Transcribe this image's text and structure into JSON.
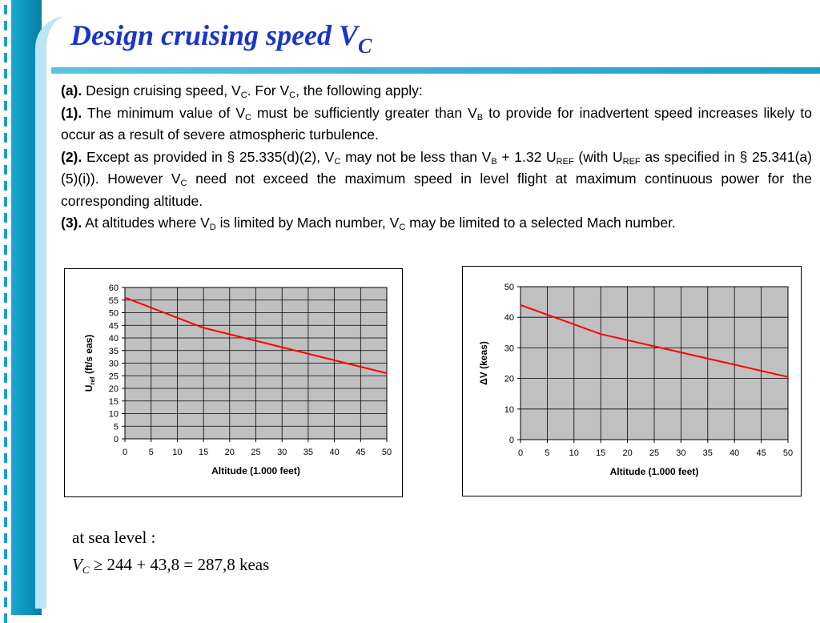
{
  "title": {
    "text": "Design cruising speed V",
    "sub": "C"
  },
  "body": {
    "p_a": {
      "label": "(a).",
      "t1": " Design cruising speed, V",
      "s1": "C",
      "t2": ". For V",
      "s2": "C",
      "t3": ", the following apply:"
    },
    "p_1": {
      "label": "(1).",
      "t1": " The minimum value of V",
      "s1": "C",
      "t2": " must be sufficiently greater than V",
      "s2": "B",
      "t3": " to provide for inadvertent speed increases likely to occur as a result of severe atmospheric turbulence."
    },
    "p_2": {
      "label": "(2).",
      "t1": " Except as provided in § 25.335(d)(2), V",
      "s1": "C",
      "t2": " may not be less than V",
      "s2": "B",
      "t3": " + 1.32 U",
      "s3": "REF",
      "t4": " (with U",
      "s4": "REF",
      "t5": " as specified in § 25.341(a)(5)(i)). However V",
      "s5": "C",
      "t6": " need not exceed the maximum speed in level flight at maximum continuous power for the corresponding altitude."
    },
    "p_3": {
      "label": "(3).",
      "t1": " At altitudes where V",
      "s1": "D",
      "t2": " is limited by Mach number, V",
      "s2": "C",
      "t3": " may be limited to a selected Mach number."
    }
  },
  "chart_data": [
    {
      "type": "line",
      "xlabel": "Altitude (1.000 feet)",
      "ylabel": "U",
      "ylabel_sub": "ref",
      "ylabel_rest": " (ft/s eas)",
      "x_ticks": [
        "0",
        "5",
        "10",
        "15",
        "20",
        "25",
        "30",
        "35",
        "40",
        "45",
        "50"
      ],
      "y_ticks": [
        "0",
        "5",
        "10",
        "15",
        "20",
        "25",
        "30",
        "35",
        "40",
        "45",
        "50",
        "55",
        "60"
      ],
      "xlim": [
        0,
        50
      ],
      "ylim": [
        0,
        60
      ],
      "grid": true,
      "plot_bg": "#c0c0c0",
      "line_color": "#ff0000",
      "x": [
        0,
        15,
        50
      ],
      "y": [
        56,
        44,
        26
      ]
    },
    {
      "type": "line",
      "xlabel": "Altitude (1.000 feet)",
      "ylabel": "ΔV (keas)",
      "x_ticks": [
        "0",
        "5",
        "10",
        "15",
        "20",
        "25",
        "30",
        "35",
        "40",
        "45",
        "50"
      ],
      "y_ticks": [
        "0",
        "10",
        "20",
        "30",
        "40",
        "50"
      ],
      "xlim": [
        0,
        50
      ],
      "ylim": [
        0,
        50
      ],
      "grid": true,
      "plot_bg": "#c0c0c0",
      "line_color": "#ff0000",
      "x": [
        0,
        15,
        50
      ],
      "y": [
        44,
        34.5,
        20.5
      ]
    }
  ],
  "formula": {
    "line1": "at sea level :",
    "var": "V",
    "var_sub": "C",
    "expr": " ≥ 244 + 43,8 = 287,8 keas"
  },
  "colors": {
    "sidebar": "#0d98c1",
    "title": "#1a35c8",
    "rule": "#1a9fc9"
  }
}
